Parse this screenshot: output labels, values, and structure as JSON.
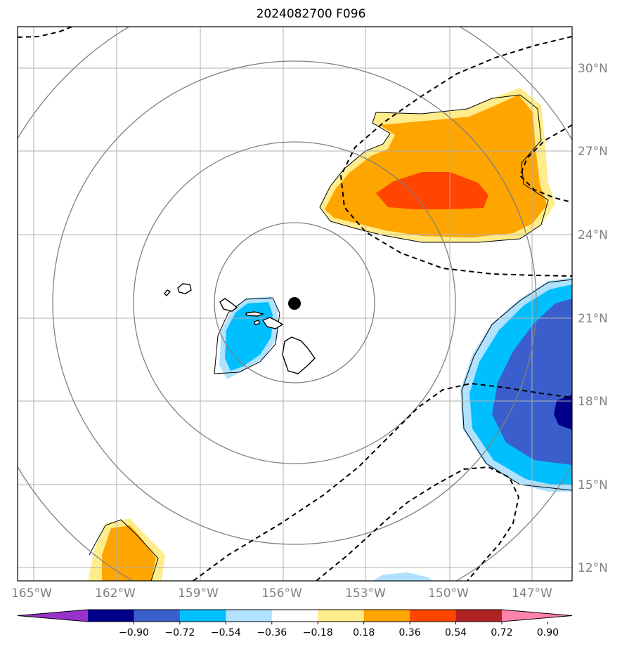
{
  "title": "2024082700 F096",
  "map": {
    "lon_labels": [
      "165°W",
      "162°W",
      "159°W",
      "156°W",
      "153°W",
      "150°W",
      "147°W"
    ],
    "lat_labels": [
      "30°N",
      "27°N",
      "24°N",
      "21°N",
      "18°N",
      "15°N",
      "12°N"
    ],
    "storm_center_marker": "black-dot",
    "range_rings": 4
  },
  "colorbar": {
    "labels": [
      "−0.90",
      "−0.72",
      "−0.54",
      "−0.36",
      "−0.18",
      "0.18",
      "0.36",
      "0.54",
      "0.72",
      "0.90"
    ],
    "colors": [
      "#9932cc",
      "#00008b",
      "#3a5fcd",
      "#00bfff",
      "#b0e2ff",
      "#ffffff",
      "#ffec8b",
      "#ffa500",
      "#ff4500",
      "#b22222",
      "#ff82ab"
    ]
  }
}
